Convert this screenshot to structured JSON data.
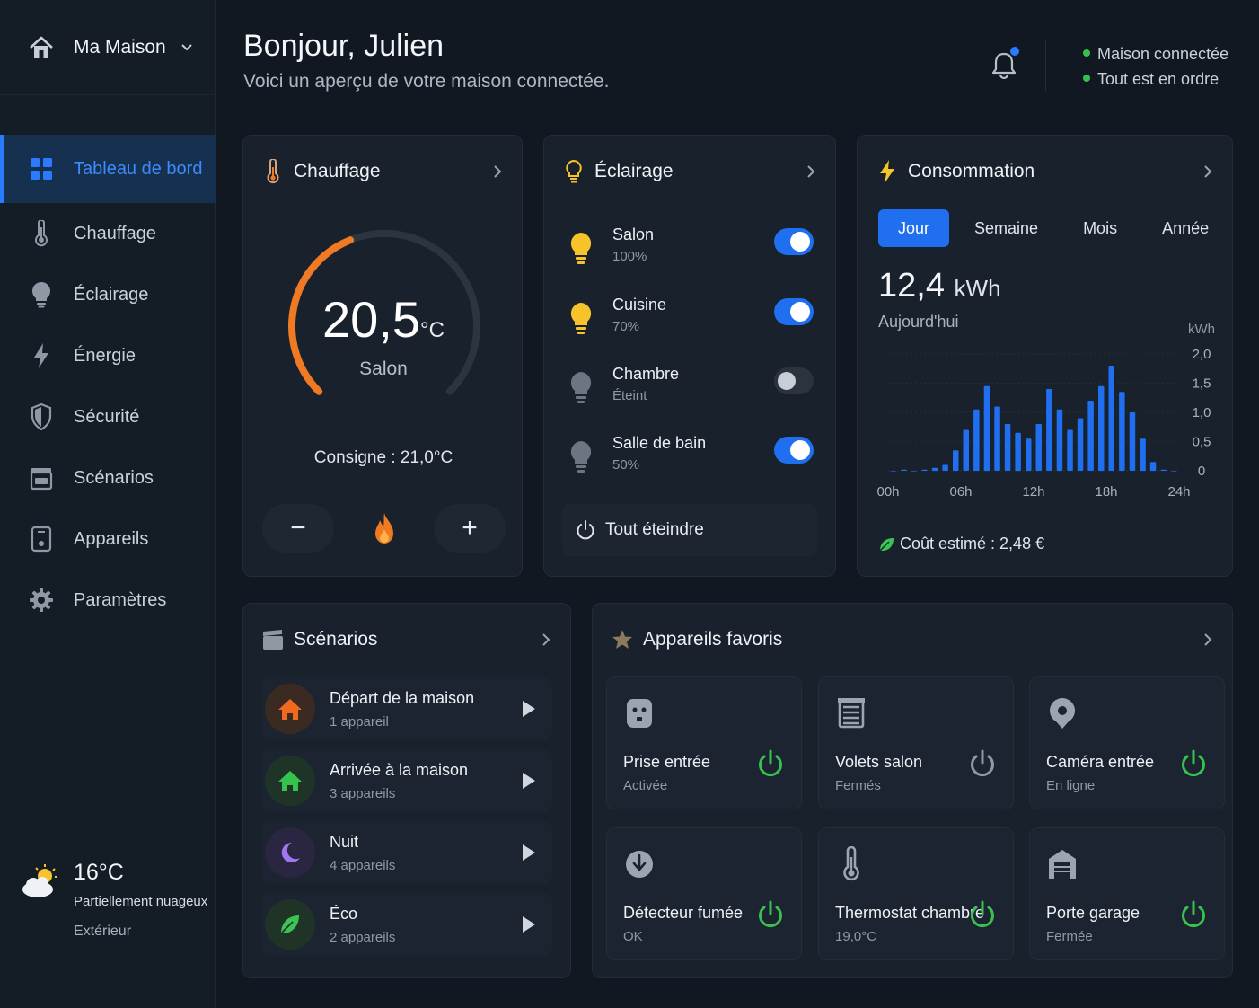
{
  "sidebar": {
    "home": "Ma Maison",
    "items": [
      {
        "label": "Tableau de bord",
        "icon": "grid-icon"
      },
      {
        "label": "Chauffage",
        "icon": "thermometer-icon"
      },
      {
        "label": "Éclairage",
        "icon": "bulb-icon"
      },
      {
        "label": "Énergie",
        "icon": "bolt-icon"
      },
      {
        "label": "Sécurité",
        "icon": "shield-icon"
      },
      {
        "label": "Scénarios",
        "icon": "clapper-icon"
      },
      {
        "label": "Appareils",
        "icon": "device-icon"
      },
      {
        "label": "Paramètres",
        "icon": "gear-icon"
      }
    ],
    "weather": {
      "temp": "16°C",
      "desc": "Partiellement nuageux",
      "where": "Extérieur"
    }
  },
  "header": {
    "title": "Bonjour, Julien",
    "subtitle": "Voici un aperçu de votre maison connectée.",
    "status": [
      "Maison connectée",
      "Tout est en ordre"
    ]
  },
  "heating": {
    "title": "Chauffage",
    "temp": "20,5",
    "unit": "°C",
    "room": "Salon",
    "setpoint": "Consigne : 21,0°C",
    "minus": "−",
    "plus": "+",
    "gauge_fraction": 0.42
  },
  "lighting": {
    "title": "Éclairage",
    "rooms": [
      {
        "name": "Salon",
        "value": "100%",
        "on": true
      },
      {
        "name": "Cuisine",
        "value": "70%",
        "on": true
      },
      {
        "name": "Chambre",
        "value": "Éteint",
        "on": false
      },
      {
        "name": "Salle de bain",
        "value": "50%",
        "on": true
      }
    ],
    "all_off": "Tout éteindre"
  },
  "consumption": {
    "title": "Consommation",
    "tabs": [
      "Jour",
      "Semaine",
      "Mois",
      "Année"
    ],
    "active_tab": "Jour",
    "value": "12,4",
    "unit": "kWh",
    "period": "Aujourd'hui",
    "cost": "Coût estimé : 2,48 €"
  },
  "chart_data": {
    "type": "bar",
    "ylabel": "kWh",
    "ylim": [
      0,
      2.0
    ],
    "yticks": [
      "2,0",
      "1,5",
      "1,0",
      "0,5",
      "0"
    ],
    "xticks": [
      "00h",
      "06h",
      "12h",
      "18h",
      "24h"
    ],
    "values": [
      0.0,
      0.02,
      0.0,
      0.02,
      0.05,
      0.1,
      0.35,
      0.7,
      1.05,
      1.45,
      1.1,
      0.8,
      0.65,
      0.55,
      0.8,
      1.4,
      1.05,
      0.7,
      0.9,
      1.2,
      1.45,
      1.8,
      1.35,
      1.0,
      0.55,
      0.15,
      0.02,
      0.0
    ],
    "color": "#1f6ff0"
  },
  "scenarios": {
    "title": "Scénarios",
    "items": [
      {
        "name": "Départ de la maison",
        "count": "1 appareil",
        "color": "#ef6a1f",
        "bg": "#3a2a22",
        "icon": "home-icon"
      },
      {
        "name": "Arrivée à la maison",
        "count": "3 appareils",
        "color": "#37c24e",
        "bg": "#1e3426",
        "icon": "home-icon"
      },
      {
        "name": "Nuit",
        "count": "4 appareils",
        "color": "#a176f0",
        "bg": "#2a2540",
        "icon": "moon-icon"
      },
      {
        "name": "Éco",
        "count": "2 appareils",
        "color": "#3cc353",
        "bg": "#1f3327",
        "icon": "leaf-icon"
      }
    ]
  },
  "favorites": {
    "title": "Appareils favoris",
    "items": [
      {
        "name": "Prise entrée",
        "state": "Activée",
        "on": true,
        "icon": "plug-icon"
      },
      {
        "name": "Volets salon",
        "state": "Fermés",
        "on": false,
        "icon": "shutter-icon"
      },
      {
        "name": "Caméra entrée",
        "state": "En ligne",
        "on": true,
        "icon": "camera-icon"
      },
      {
        "name": "Détecteur fumée",
        "state": "OK",
        "on": true,
        "icon": "smoke-detector-icon"
      },
      {
        "name": "Thermostat chambre",
        "state": "19,0°C",
        "on": true,
        "icon": "thermometer-icon"
      },
      {
        "name": "Porte garage",
        "state": "Fermée",
        "on": true,
        "icon": "garage-icon"
      }
    ]
  },
  "colors": {
    "accent": "#1f6ff0",
    "orange": "#f07a24",
    "green": "#37c24e",
    "yellow": "#f6c32b"
  }
}
